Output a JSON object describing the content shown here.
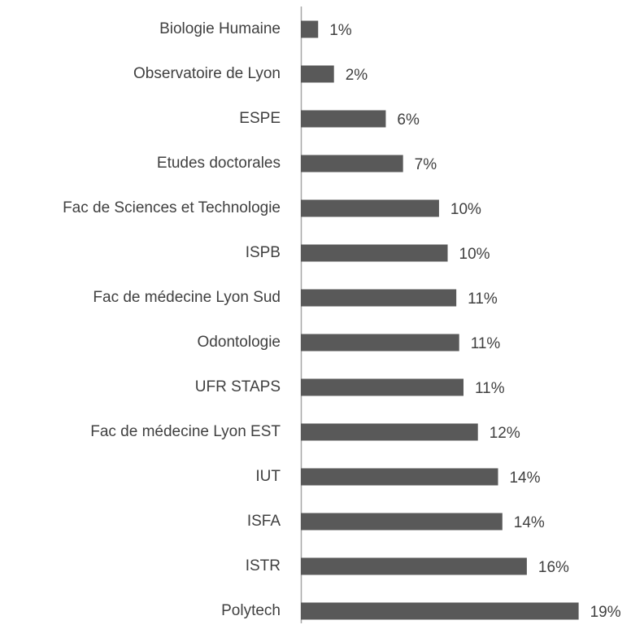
{
  "chart_data": {
    "type": "bar",
    "orientation": "horizontal",
    "categories": [
      "Biologie Humaine",
      "Observatoire de Lyon",
      "ESPE",
      "Etudes doctorales",
      "Fac de Sciences et Technologie",
      "ISPB",
      "Fac de médecine Lyon Sud",
      "Odontologie",
      "UFR STAPS",
      "Fac de médecine Lyon EST",
      "IUT",
      "ISFA",
      "ISTR",
      "Polytech"
    ],
    "values": [
      1.2,
      2.3,
      5.9,
      7.1,
      9.6,
      10.2,
      10.8,
      11.0,
      11.3,
      12.3,
      13.7,
      14.0,
      15.7,
      19.3
    ],
    "value_labels": [
      "1%",
      "2%",
      "6%",
      "7%",
      "10%",
      "10%",
      "11%",
      "11%",
      "11%",
      "12%",
      "14%",
      "14%",
      "16%",
      "19%"
    ],
    "color": "#595959",
    "xlim": [
      0,
      20
    ]
  }
}
